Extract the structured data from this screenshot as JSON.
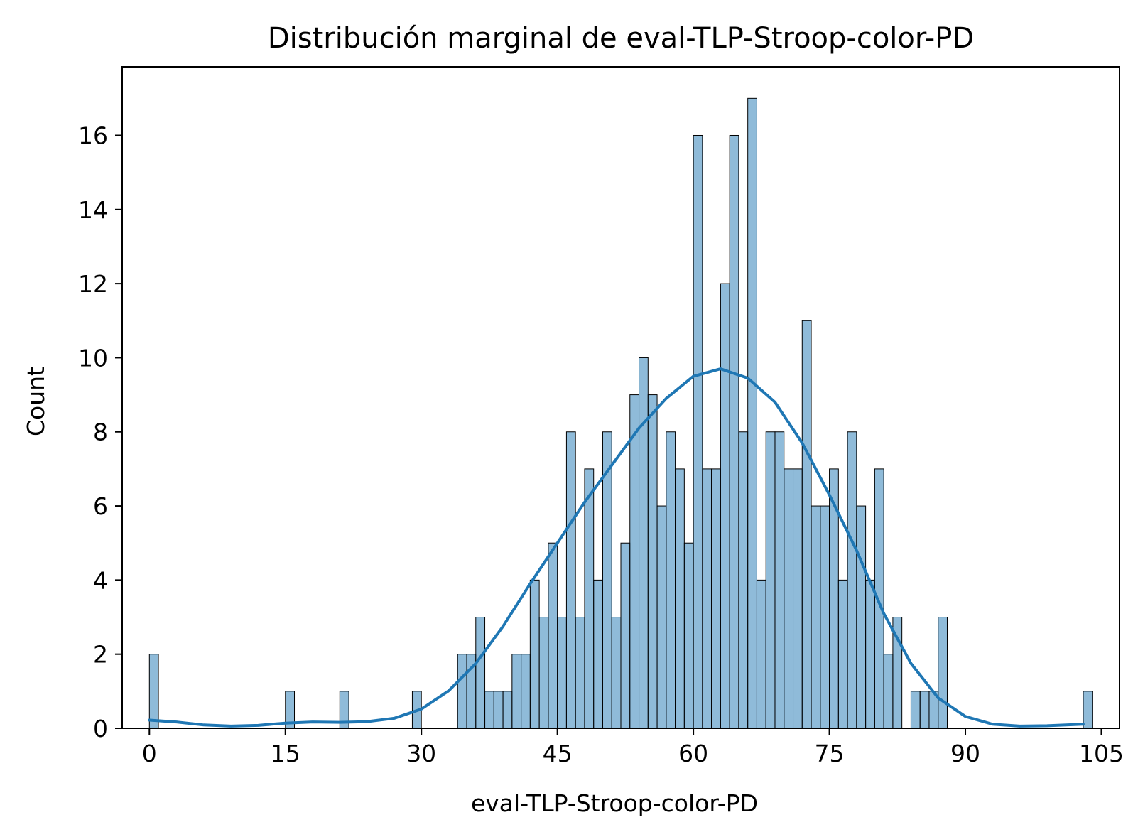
{
  "chart_data": {
    "type": "bar",
    "title": "Distribución marginal de eval-TLP-Stroop-color-PD",
    "xlabel": "eval-TLP-Stroop-color-PD",
    "ylabel": "Count",
    "xlim": [
      -3,
      107
    ],
    "ylim": [
      0,
      17.85
    ],
    "xticks": [
      0,
      15,
      30,
      45,
      60,
      75,
      90,
      105
    ],
    "yticks": [
      0,
      2,
      4,
      6,
      8,
      10,
      12,
      14,
      16
    ],
    "bin_start": 0,
    "bin_width": 1,
    "counts": [
      2,
      0,
      0,
      0,
      0,
      0,
      0,
      0,
      0,
      0,
      0,
      0,
      0,
      0,
      0,
      1,
      0,
      0,
      0,
      0,
      0,
      1,
      0,
      0,
      0,
      0,
      0,
      0,
      0,
      1,
      0,
      0,
      0,
      0,
      2,
      2,
      3,
      1,
      1,
      1,
      2,
      2,
      4,
      3,
      5,
      3,
      8,
      3,
      7,
      4,
      8,
      3,
      5,
      9,
      10,
      9,
      6,
      8,
      7,
      5,
      16,
      7,
      7,
      12,
      16,
      8,
      17,
      4,
      8,
      8,
      7,
      7,
      11,
      6,
      6,
      7,
      4,
      8,
      6,
      4,
      7,
      2,
      3,
      0,
      1,
      1,
      1,
      3,
      0,
      0,
      0,
      0,
      0,
      0,
      0,
      0,
      0,
      0,
      0,
      0,
      0,
      0,
      0,
      1
    ],
    "kde": {
      "name": "",
      "x": [
        0,
        3,
        6,
        9,
        12,
        15,
        18,
        21,
        24,
        27,
        30,
        33,
        36,
        39,
        42,
        45,
        48,
        51,
        54,
        57,
        60,
        63,
        66,
        69,
        72,
        75,
        78,
        81,
        84,
        87,
        90,
        93,
        96,
        99,
        103
      ],
      "y": [
        0.22,
        0.17,
        0.09,
        0.06,
        0.08,
        0.14,
        0.17,
        0.16,
        0.18,
        0.27,
        0.52,
        1.01,
        1.75,
        2.75,
        3.9,
        5.0,
        6.1,
        7.1,
        8.1,
        8.9,
        9.5,
        9.7,
        9.45,
        8.8,
        7.7,
        6.3,
        4.8,
        3.1,
        1.75,
        0.82,
        0.32,
        0.11,
        0.06,
        0.07,
        0.11
      ]
    }
  }
}
